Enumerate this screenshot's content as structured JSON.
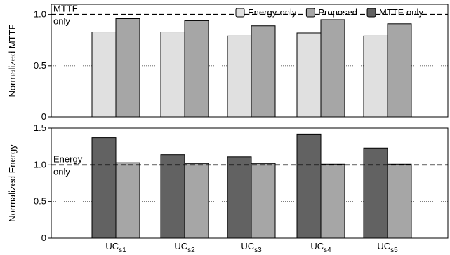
{
  "chart_data": [
    {
      "type": "bar",
      "ylabel": "Normalized MTTF",
      "ylim": [
        0,
        1.1
      ],
      "yticks": [
        "0",
        "0.5",
        "1.0"
      ],
      "ytick_values": [
        0,
        0.5,
        1.0
      ],
      "categories": [
        "UC",
        "UC",
        "UC",
        "UC",
        "UC"
      ],
      "series": [
        {
          "name": "Energy-only",
          "color": "#e0e0e0",
          "values": [
            0.83,
            0.83,
            0.79,
            0.82,
            0.79
          ]
        },
        {
          "name": "Proposed",
          "color": "#a6a6a6",
          "values": [
            0.96,
            0.94,
            0.89,
            0.95,
            0.91
          ]
        }
      ],
      "reference_line": {
        "value": 1.0,
        "label_line1": "MTTF",
        "label_line2": "only"
      },
      "grid": "dotted-horizontal",
      "legend": {
        "placement": "top-right",
        "entries": [
          {
            "label": "Energy-only",
            "color": "#e0e0e0"
          },
          {
            "label": "Proposed",
            "color": "#a6a6a6"
          },
          {
            "label": "MTTF-only",
            "color": "#626262"
          }
        ]
      }
    },
    {
      "type": "bar",
      "ylabel": "Normalized Energy",
      "ylim": [
        0,
        1.5
      ],
      "yticks": [
        "0",
        "0.5",
        "1.0",
        "1.5"
      ],
      "ytick_values": [
        0,
        0.5,
        1.0,
        1.5
      ],
      "categories": [
        "UC",
        "UC",
        "UC",
        "UC",
        "UC"
      ],
      "category_subscripts": [
        "s1",
        "s2",
        "s3",
        "s4",
        "s5"
      ],
      "series": [
        {
          "name": "MTTF-only",
          "color": "#626262",
          "values": [
            1.37,
            1.14,
            1.11,
            1.42,
            1.23
          ]
        },
        {
          "name": "Proposed",
          "color": "#a6a6a6",
          "values": [
            1.03,
            1.02,
            1.02,
            1.01,
            1.01
          ]
        }
      ],
      "reference_line": {
        "value": 1.0,
        "label_line1": "Energy",
        "label_line2": "only"
      },
      "grid": "dotted-horizontal"
    }
  ]
}
